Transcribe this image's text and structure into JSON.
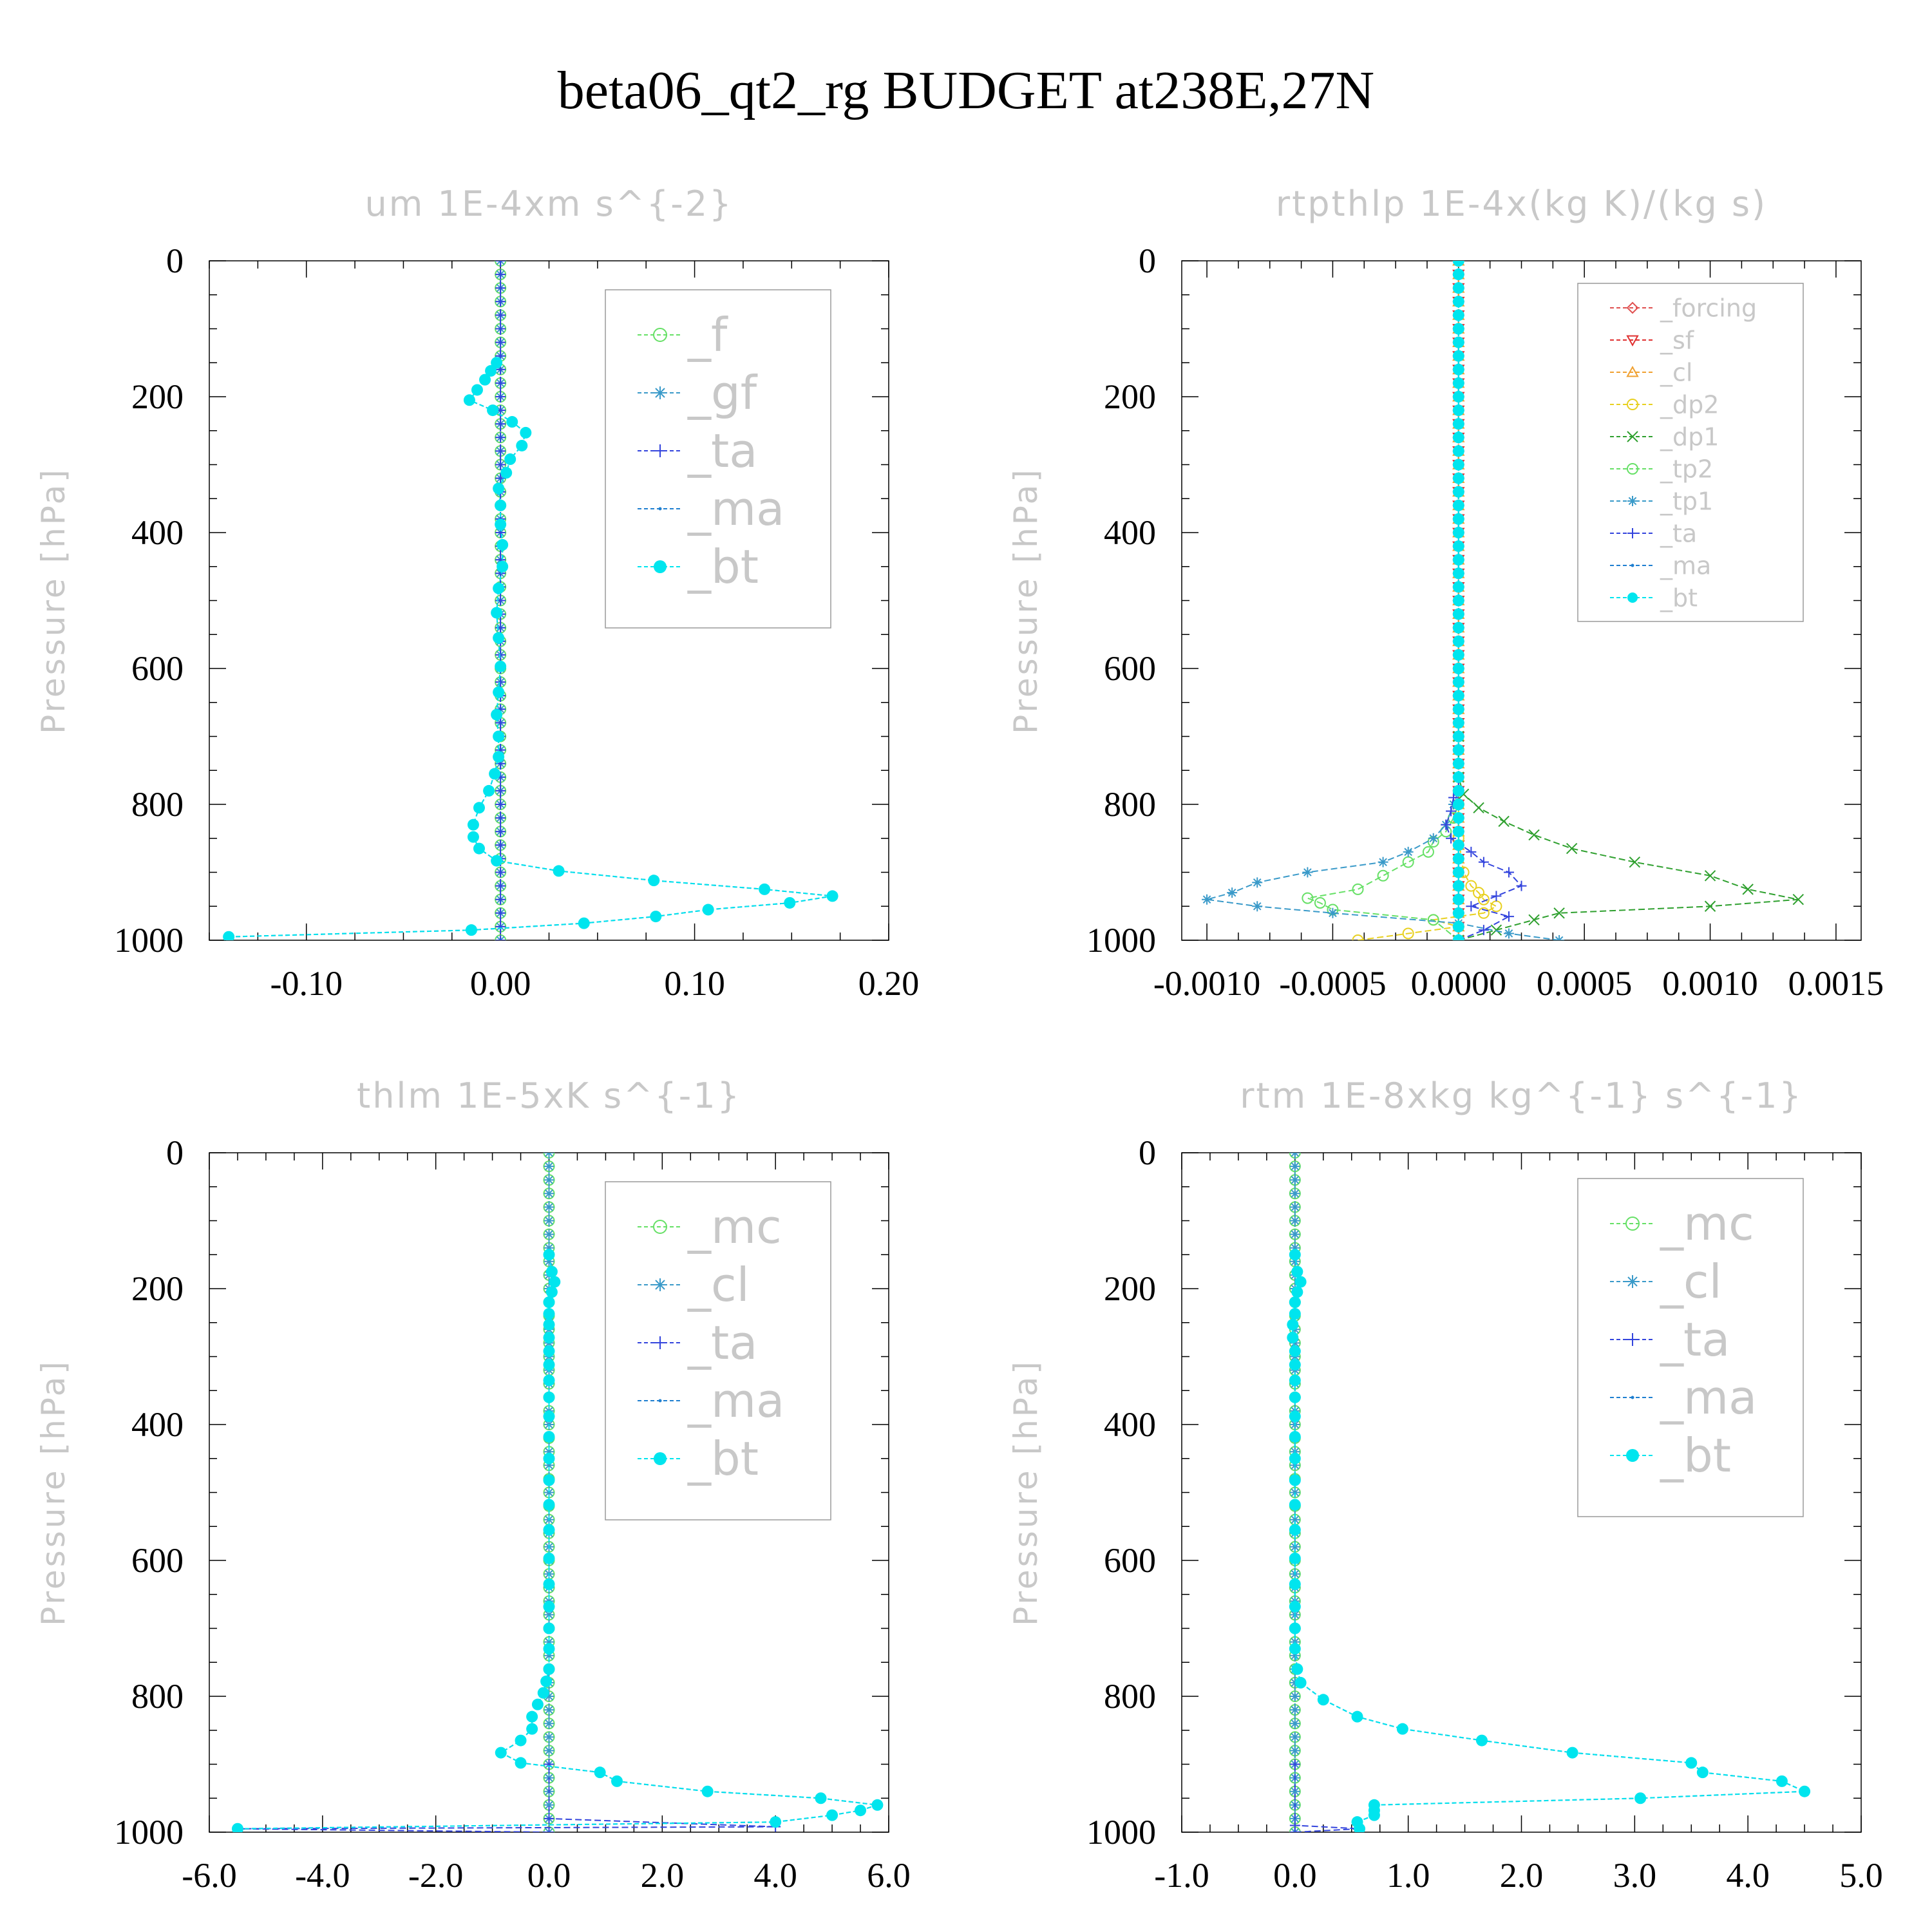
{
  "title": "beta06_qt2_rg  BUDGET at238E,27N",
  "chart_data": [
    {
      "type": "line",
      "title": "um  1E-4xm s^{-2}",
      "ylabel": "Pressure [hPa]",
      "ylim": [
        1000,
        0
      ],
      "xlim": [
        -0.15,
        0.2
      ],
      "xticks": [
        "-0.10",
        "0.00",
        "0.10",
        "0.20"
      ],
      "xtick_values": [
        -0.1,
        0.0,
        0.1,
        0.2
      ],
      "yticks": [
        "0",
        "200",
        "400",
        "600",
        "800",
        "1000"
      ],
      "yticks_values": [
        0,
        200,
        400,
        600,
        800,
        1000
      ],
      "legend_position": "top-right",
      "pressure": [
        995,
        985,
        975,
        965,
        955,
        945,
        935,
        925,
        912,
        898,
        883,
        865,
        848,
        830,
        805,
        780,
        755,
        730,
        700,
        668,
        635,
        597,
        555,
        518,
        482,
        450,
        418,
        388,
        360,
        335,
        312,
        292,
        272,
        253,
        237,
        220,
        205,
        190,
        175,
        162,
        150
      ],
      "bt": [
        -0.14,
        -0.015,
        0.043,
        0.08,
        0.107,
        0.149,
        0.171,
        0.136,
        0.079,
        0.03,
        -0.002,
        -0.011,
        -0.014,
        -0.014,
        -0.011,
        -0.006,
        -0.003,
        -0.001,
        -0.001,
        -0.002,
        -0.001,
        0.0,
        -0.001,
        -0.002,
        -0.001,
        0.001,
        0.001,
        0.0,
        0.0,
        -0.001,
        0.003,
        0.005,
        0.011,
        0.013,
        0.006,
        -0.004,
        -0.016,
        -0.012,
        -0.008,
        -0.005,
        -0.002
      ],
      "series": [
        {
          "name": "_f",
          "color": "#66e066",
          "marker": "circle-open",
          "flat": 0.0
        },
        {
          "name": "_gf",
          "color": "#3a9ac9",
          "marker": "asterisk",
          "flat": 0.0
        },
        {
          "name": "_ta",
          "color": "#3344dd",
          "marker": "plus",
          "flat": 0.0
        },
        {
          "name": "_ma",
          "color": "#1f7fd0",
          "marker": "dot",
          "same_as": "bt"
        },
        {
          "name": "_bt",
          "color": "#00e5ee",
          "marker": "filled-circle",
          "same_as": "bt"
        }
      ]
    },
    {
      "type": "line",
      "title": "rtpthlp  1E-4x(kg K)/(kg s)",
      "ylabel": "Pressure [hPa]",
      "ylim": [
        1000,
        0
      ],
      "xlim": [
        -0.0011,
        0.0016
      ],
      "xticks": [
        "-0.0010",
        "-0.0005",
        "0.0000",
        "0.0005",
        "0.0010",
        "0.0015"
      ],
      "xtick_values": [
        -0.001,
        -0.0005,
        0.0,
        0.0005,
        0.001,
        0.0015
      ],
      "yticks": [
        "0",
        "200",
        "400",
        "600",
        "800",
        "1000"
      ],
      "yticks_values": [
        0,
        200,
        400,
        600,
        800,
        1000
      ],
      "legend_position": "top-right",
      "series": [
        {
          "name": "_forcing",
          "color": "#e05050",
          "marker": "diamond",
          "flat": 0.0
        },
        {
          "name": "_sf",
          "color": "#e03030",
          "marker": "triangle-down",
          "flat": 0.0
        },
        {
          "name": "_cl",
          "color": "#f0a030",
          "marker": "triangle-up",
          "flat": 0.0
        },
        {
          "name": "_dp2",
          "color": "#e8d020",
          "marker": "circle-open",
          "pressure": [
            1000,
            990,
            980,
            970,
            960,
            950,
            940,
            930,
            920,
            900,
            850,
            800
          ],
          "values": [
            -0.0004,
            -0.0002,
            0.0,
            -0.0001,
            0.0001,
            0.00015,
            0.0001,
            8e-05,
            5e-05,
            2e-05,
            0.0,
            0.0
          ]
        },
        {
          "name": "_dp1",
          "color": "#2fa02f",
          "marker": "x",
          "pressure": [
            1000,
            985,
            970,
            960,
            950,
            940,
            925,
            905,
            885,
            865,
            845,
            825,
            805,
            785,
            760,
            700
          ],
          "values": [
            0.0,
            0.00015,
            0.0003,
            0.0004,
            0.001,
            0.00135,
            0.00115,
            0.001,
            0.0007,
            0.00045,
            0.0003,
            0.00018,
            8e-05,
            2e-05,
            0.0,
            0.0
          ]
        },
        {
          "name": "_tp2",
          "color": "#66e066",
          "marker": "circle-open",
          "pressure": [
            1000,
            970,
            955,
            945,
            938,
            925,
            905,
            885,
            870,
            855,
            840,
            820,
            800,
            780
          ],
          "values": [
            0.0,
            -0.0001,
            -0.0005,
            -0.00055,
            -0.0006,
            -0.0004,
            -0.0003,
            -0.0002,
            -0.00012,
            -0.0001,
            -5e-05,
            -2e-05,
            0.0,
            0.0
          ]
        },
        {
          "name": "_tp1",
          "color": "#3a9ac9",
          "marker": "asterisk",
          "pressure": [
            1000,
            990,
            975,
            960,
            950,
            940,
            930,
            915,
            900,
            885,
            870,
            850,
            830,
            800,
            780
          ],
          "values": [
            0.0004,
            0.0002,
            0.0,
            -0.0005,
            -0.0008,
            -0.001,
            -0.0009,
            -0.0008,
            -0.0006,
            -0.0003,
            -0.0002,
            -0.0001,
            -5e-05,
            -2e-05,
            0.0
          ]
        },
        {
          "name": "_ta",
          "color": "#3344dd",
          "marker": "plus",
          "pressure": [
            1000,
            985,
            965,
            950,
            935,
            920,
            900,
            885,
            870,
            850,
            830,
            810,
            790,
            775
          ],
          "values": [
            0.0,
            0.0001,
            0.0002,
            5e-05,
            0.00015,
            0.00025,
            0.0002,
            0.0001,
            5e-05,
            -3e-05,
            -5e-05,
            -3e-05,
            -2e-05,
            0.0
          ]
        },
        {
          "name": "_ma",
          "color": "#1f7fd0",
          "marker": "dot",
          "flat": 0.0
        },
        {
          "name": "_bt",
          "color": "#00e5ee",
          "marker": "filled-circle",
          "flat": 0.0
        }
      ]
    },
    {
      "type": "line",
      "title": "thlm  1E-5xK s^{-1}",
      "ylabel": "Pressure [hPa]",
      "ylim": [
        1000,
        0
      ],
      "xlim": [
        -6.0,
        6.0
      ],
      "xticks": [
        "-6.0",
        "-4.0",
        "-2.0",
        "0.0",
        "2.0",
        "4.0",
        "6.0"
      ],
      "xtick_values": [
        -6.0,
        -4.0,
        -2.0,
        0.0,
        2.0,
        4.0,
        6.0
      ],
      "yticks": [
        "0",
        "200",
        "400",
        "600",
        "800",
        "1000"
      ],
      "yticks_values": [
        0,
        200,
        400,
        600,
        800,
        1000
      ],
      "legend_position": "top-right",
      "pressure": [
        995,
        985,
        975,
        968,
        960,
        950,
        940,
        925,
        912,
        898,
        883,
        865,
        848,
        830,
        812,
        795,
        778,
        760,
        730,
        700,
        668,
        635,
        597,
        555,
        518,
        482,
        450,
        418,
        388,
        360,
        335,
        312,
        292,
        272,
        253,
        237,
        220,
        205,
        190,
        175,
        150
      ],
      "bt": [
        -5.5,
        4.0,
        5.0,
        5.5,
        5.8,
        4.8,
        2.8,
        1.2,
        0.9,
        -0.5,
        -0.85,
        -0.5,
        -0.3,
        -0.3,
        -0.2,
        -0.1,
        -0.05,
        0.0,
        0.0,
        0.0,
        0.0,
        0.0,
        0.0,
        0.0,
        0.0,
        0.0,
        0.0,
        0.0,
        0.0,
        0.0,
        0.0,
        0.0,
        0.0,
        0.0,
        0.0,
        0.0,
        0.0,
        0.05,
        0.1,
        0.05,
        0.0
      ],
      "series": [
        {
          "name": "_mc",
          "color": "#66e066",
          "marker": "circle-open",
          "flat": 0.0
        },
        {
          "name": "_cl",
          "color": "#3a9ac9",
          "marker": "asterisk",
          "flat": 0.0
        },
        {
          "name": "_ta",
          "color": "#3344dd",
          "marker": "plus",
          "pressure": [
            1000,
            995,
            992,
            980,
            900
          ],
          "values": [
            0.0,
            -5.5,
            4.0,
            0.0,
            0.0
          ]
        },
        {
          "name": "_ma",
          "color": "#1f7fd0",
          "marker": "dot",
          "same_as": "bt"
        },
        {
          "name": "_bt",
          "color": "#00e5ee",
          "marker": "filled-circle",
          "same_as": "bt"
        }
      ]
    },
    {
      "type": "line",
      "title": "rtm  1E-8xkg kg^{-1} s^{-1}",
      "ylabel": "Pressure [hPa]",
      "ylim": [
        1000,
        0
      ],
      "xlim": [
        -1.0,
        5.0
      ],
      "xticks": [
        "-1.0",
        "0.0",
        "1.0",
        "2.0",
        "3.0",
        "4.0",
        "5.0"
      ],
      "xtick_values": [
        -1.0,
        0.0,
        1.0,
        2.0,
        3.0,
        4.0,
        5.0
      ],
      "yticks": [
        "0",
        "200",
        "400",
        "600",
        "800",
        "1000"
      ],
      "yticks_values": [
        0,
        200,
        400,
        600,
        800,
        1000
      ],
      "legend_position": "top-right",
      "pressure": [
        995,
        985,
        975,
        968,
        960,
        950,
        940,
        925,
        912,
        898,
        883,
        865,
        848,
        830,
        805,
        780,
        760,
        730,
        700,
        668,
        635,
        597,
        555,
        518,
        482,
        450,
        418,
        388,
        360,
        335,
        312,
        292,
        272,
        253,
        237,
        220,
        205,
        190,
        175,
        150
      ],
      "bt": [
        0.57,
        0.55,
        0.7,
        0.7,
        0.7,
        3.05,
        4.5,
        4.3,
        3.6,
        3.5,
        2.45,
        1.65,
        0.95,
        0.55,
        0.25,
        0.05,
        0.02,
        0.0,
        0.0,
        0.0,
        0.0,
        0.0,
        0.0,
        0.0,
        0.0,
        0.0,
        0.0,
        0.0,
        0.0,
        0.0,
        0.0,
        0.0,
        -0.02,
        -0.02,
        0.0,
        0.0,
        0.02,
        0.05,
        0.02,
        0.0
      ],
      "series": [
        {
          "name": "_mc",
          "color": "#66e066",
          "marker": "circle-open",
          "flat": 0.0
        },
        {
          "name": "_cl",
          "color": "#3a9ac9",
          "marker": "asterisk",
          "flat": 0.0
        },
        {
          "name": "_ta",
          "color": "#3344dd",
          "marker": "plus",
          "pressure": [
            1000,
            995,
            990,
            900
          ],
          "values": [
            0.0,
            0.57,
            0.0,
            0.0
          ]
        },
        {
          "name": "_ma",
          "color": "#1f7fd0",
          "marker": "dot",
          "same_as": "bt"
        },
        {
          "name": "_bt",
          "color": "#00e5ee",
          "marker": "filled-circle",
          "same_as": "bt"
        }
      ]
    }
  ]
}
